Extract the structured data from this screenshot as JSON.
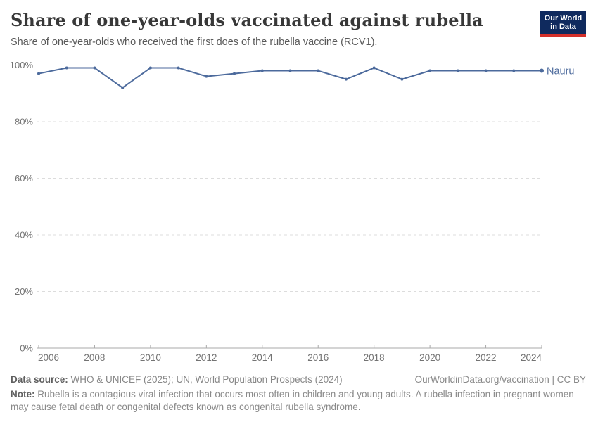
{
  "header": {
    "title": "Share of one-year-olds vaccinated against rubella",
    "subtitle": "Share of one-year-olds who received the first does of the rubella vaccine (RCV1)."
  },
  "logo": {
    "line1": "Our World",
    "line2": "in Data",
    "bg_color": "#0f2a5e",
    "accent_color": "#d4302b"
  },
  "chart_data": {
    "type": "line",
    "title": "Share of one-year-olds vaccinated against rubella",
    "x": [
      2006,
      2007,
      2008,
      2009,
      2010,
      2011,
      2012,
      2013,
      2014,
      2015,
      2016,
      2017,
      2018,
      2019,
      2020,
      2021,
      2022,
      2023,
      2024
    ],
    "series": [
      {
        "name": "Nauru",
        "color": "#4C6A9C",
        "values": [
          97,
          99,
          99,
          92,
          99,
          99,
          96,
          97,
          98,
          98,
          98,
          95,
          99,
          95,
          98,
          98,
          98,
          98,
          98
        ]
      }
    ],
    "ylim": [
      0,
      100
    ],
    "y_ticks": [
      0,
      20,
      40,
      60,
      80,
      100
    ],
    "y_tick_labels": [
      "0%",
      "20%",
      "40%",
      "60%",
      "80%",
      "100%"
    ],
    "x_tick_labels": [
      "2006",
      "2008",
      "2010",
      "2012",
      "2014",
      "2016",
      "2018",
      "2020",
      "2022",
      "2024"
    ],
    "grid": "horizontal-dashed",
    "grid_color": "#dcdcdc",
    "axis_color": "#a9a9a9",
    "tick_label_color": "#737373",
    "legend_position": "end-of-line-label"
  },
  "footer": {
    "datasource_label": "Data source:",
    "datasource_text": " WHO & UNICEF (2025); UN, World Population Prospects (2024)",
    "attribution": "OurWorldinData.org/vaccination | CC BY",
    "note_label": "Note:",
    "note_text": " Rubella is a contagious viral infection that occurs most often in children and young adults. A rubella infection in pregnant women may cause fetal death or congenital defects known as congenital rubella syndrome."
  }
}
